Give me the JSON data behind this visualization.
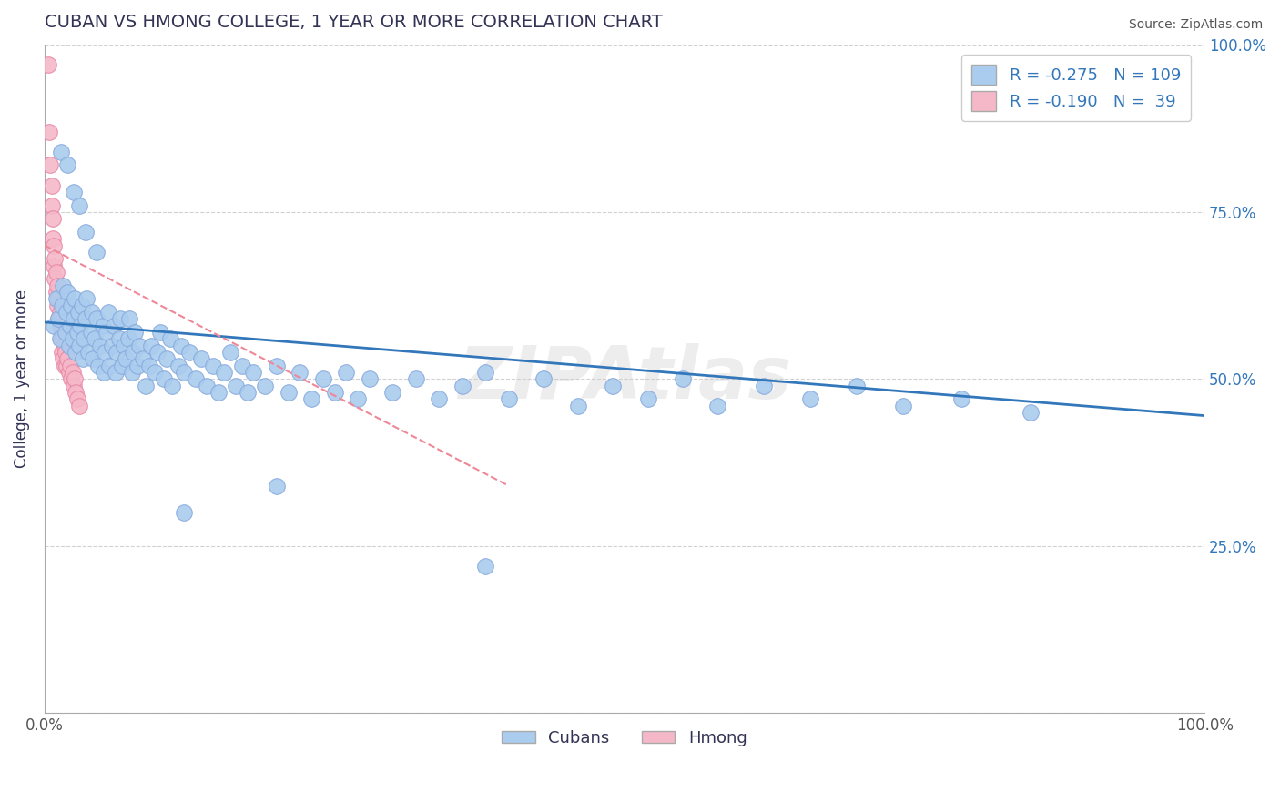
{
  "title": "CUBAN VS HMONG COLLEGE, 1 YEAR OR MORE CORRELATION CHART",
  "source": "Source: ZipAtlas.com",
  "ylabel": "College, 1 year or more",
  "xlim": [
    0.0,
    1.0
  ],
  "ylim": [
    0.0,
    1.0
  ],
  "cuban_color": "#aaccee",
  "cuban_edge_color": "#88aadd",
  "hmong_color": "#f5b8c8",
  "hmong_edge_color": "#e888a8",
  "cuban_line_color": "#3377bb",
  "hmong_line_color": "#ee8899",
  "cuban_R": -0.275,
  "cuban_N": 109,
  "hmong_R": -0.19,
  "hmong_N": 39,
  "legend_text_color": "#3377bb",
  "title_color": "#333355",
  "background_color": "#ffffff",
  "grid_color": "#cccccc",
  "watermark": "ZIPAtlas",
  "cuban_x": [
    0.008,
    0.01,
    0.012,
    0.013,
    0.015,
    0.016,
    0.018,
    0.019,
    0.02,
    0.021,
    0.022,
    0.023,
    0.024,
    0.025,
    0.026,
    0.027,
    0.028,
    0.029,
    0.03,
    0.031,
    0.032,
    0.033,
    0.034,
    0.035,
    0.036,
    0.038,
    0.04,
    0.041,
    0.042,
    0.043,
    0.045,
    0.046,
    0.048,
    0.05,
    0.051,
    0.052,
    0.053,
    0.055,
    0.056,
    0.058,
    0.06,
    0.061,
    0.062,
    0.064,
    0.065,
    0.067,
    0.068,
    0.07,
    0.072,
    0.073,
    0.075,
    0.076,
    0.078,
    0.08,
    0.082,
    0.085,
    0.087,
    0.09,
    0.092,
    0.095,
    0.097,
    0.1,
    0.103,
    0.105,
    0.108,
    0.11,
    0.115,
    0.118,
    0.12,
    0.125,
    0.13,
    0.135,
    0.14,
    0.145,
    0.15,
    0.155,
    0.16,
    0.165,
    0.17,
    0.175,
    0.18,
    0.19,
    0.2,
    0.21,
    0.22,
    0.23,
    0.24,
    0.25,
    0.26,
    0.27,
    0.28,
    0.3,
    0.32,
    0.34,
    0.36,
    0.38,
    0.4,
    0.43,
    0.46,
    0.49,
    0.52,
    0.55,
    0.58,
    0.62,
    0.66,
    0.7,
    0.74,
    0.79,
    0.85
  ],
  "cuban_y": [
    0.58,
    0.62,
    0.59,
    0.56,
    0.61,
    0.64,
    0.57,
    0.6,
    0.63,
    0.55,
    0.58,
    0.61,
    0.56,
    0.59,
    0.62,
    0.54,
    0.57,
    0.6,
    0.55,
    0.58,
    0.61,
    0.53,
    0.56,
    0.59,
    0.62,
    0.54,
    0.57,
    0.6,
    0.53,
    0.56,
    0.59,
    0.52,
    0.55,
    0.58,
    0.51,
    0.54,
    0.57,
    0.6,
    0.52,
    0.55,
    0.58,
    0.51,
    0.54,
    0.56,
    0.59,
    0.52,
    0.55,
    0.53,
    0.56,
    0.59,
    0.51,
    0.54,
    0.57,
    0.52,
    0.55,
    0.53,
    0.49,
    0.52,
    0.55,
    0.51,
    0.54,
    0.57,
    0.5,
    0.53,
    0.56,
    0.49,
    0.52,
    0.55,
    0.51,
    0.54,
    0.5,
    0.53,
    0.49,
    0.52,
    0.48,
    0.51,
    0.54,
    0.49,
    0.52,
    0.48,
    0.51,
    0.49,
    0.52,
    0.48,
    0.51,
    0.47,
    0.5,
    0.48,
    0.51,
    0.47,
    0.5,
    0.48,
    0.5,
    0.47,
    0.49,
    0.51,
    0.47,
    0.5,
    0.46,
    0.49,
    0.47,
    0.5,
    0.46,
    0.49,
    0.47,
    0.49,
    0.46,
    0.47,
    0.45
  ],
  "cuban_y_outliers": [
    0.84,
    0.82,
    0.78,
    0.76,
    0.72,
    0.69,
    0.34,
    0.3,
    0.22
  ],
  "cuban_x_outliers": [
    0.014,
    0.02,
    0.025,
    0.03,
    0.035,
    0.045,
    0.2,
    0.12,
    0.38
  ],
  "hmong_x": [
    0.003,
    0.004,
    0.005,
    0.006,
    0.006,
    0.007,
    0.007,
    0.008,
    0.008,
    0.009,
    0.009,
    0.01,
    0.01,
    0.011,
    0.011,
    0.012,
    0.012,
    0.013,
    0.013,
    0.014,
    0.014,
    0.015,
    0.015,
    0.016,
    0.016,
    0.017,
    0.017,
    0.018,
    0.019,
    0.02,
    0.021,
    0.022,
    0.023,
    0.024,
    0.025,
    0.026,
    0.027,
    0.028,
    0.03
  ],
  "hmong_y": [
    0.97,
    0.87,
    0.82,
    0.79,
    0.76,
    0.74,
    0.71,
    0.7,
    0.67,
    0.68,
    0.65,
    0.66,
    0.63,
    0.64,
    0.61,
    0.62,
    0.59,
    0.6,
    0.58,
    0.59,
    0.56,
    0.57,
    0.54,
    0.56,
    0.53,
    0.55,
    0.52,
    0.54,
    0.52,
    0.53,
    0.51,
    0.52,
    0.5,
    0.51,
    0.49,
    0.5,
    0.48,
    0.47,
    0.46
  ],
  "cuban_trendline_x": [
    0.0,
    1.0
  ],
  "cuban_trendline_y": [
    0.585,
    0.445
  ],
  "hmong_trendline_x": [
    0.0,
    0.4
  ],
  "hmong_trendline_y": [
    0.7,
    0.34
  ]
}
